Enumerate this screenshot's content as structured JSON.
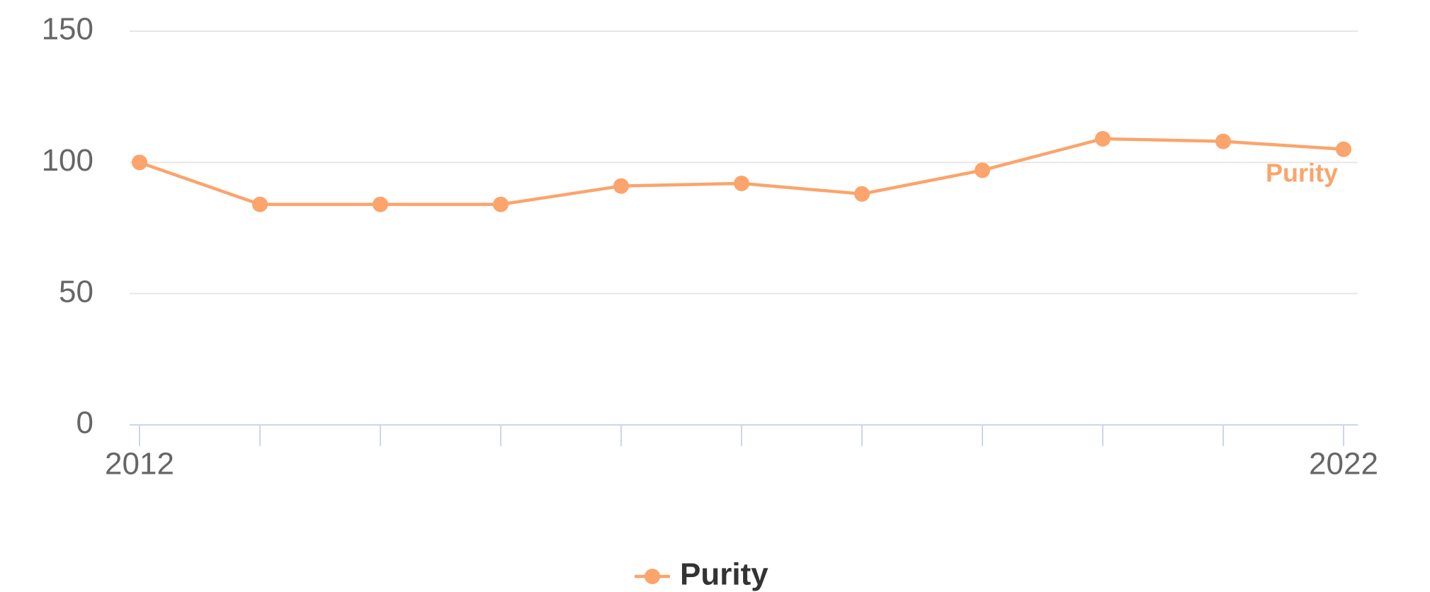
{
  "chart_data": {
    "type": "line",
    "x": [
      2012,
      2013,
      2014,
      2015,
      2016,
      2017,
      2018,
      2019,
      2020,
      2021,
      2022
    ],
    "series": [
      {
        "name": "Purity",
        "color": "#fba46b",
        "values": [
          100,
          84,
          84,
          84,
          91,
          92,
          88,
          97,
          109,
          108,
          105
        ]
      }
    ],
    "xlim": [
      2012,
      2022
    ],
    "xticks": [
      2012,
      2022
    ],
    "ylim": [
      0,
      150
    ],
    "yticks": [
      0,
      50,
      100,
      150
    ],
    "grid": true,
    "legend": "bottom"
  }
}
